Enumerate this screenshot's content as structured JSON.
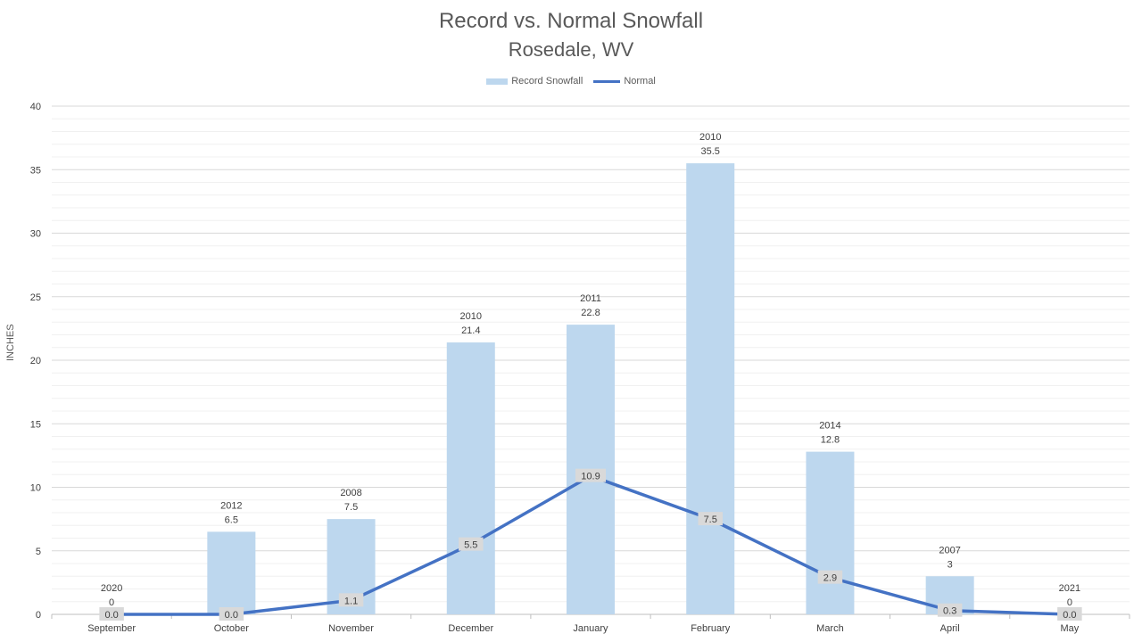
{
  "chart_data": {
    "type": "bar",
    "title": "Record vs. Normal Snowfall",
    "subtitle": "Rosedale, WV",
    "ylabel": "INCHES",
    "xlabel": "",
    "ylim": [
      0,
      40
    ],
    "yticks": [
      0,
      5,
      10,
      15,
      20,
      25,
      30,
      35,
      40
    ],
    "grid": true,
    "legend_position": "top",
    "categories": [
      "September",
      "October",
      "November",
      "December",
      "January",
      "February",
      "March",
      "April",
      "May"
    ],
    "series": [
      {
        "name": "Record Snowfall",
        "type": "bar",
        "color": "#bdd7ee",
        "values": [
          0,
          6.5,
          7.5,
          21.4,
          22.8,
          35.5,
          12.8,
          3,
          0
        ],
        "value_labels": [
          "0",
          "6.5",
          "7.5",
          "21.4",
          "22.8",
          "35.5",
          "12.8",
          "3",
          "0"
        ],
        "years": [
          "2020",
          "2012",
          "2008",
          "2010",
          "2011",
          "2010",
          "2014",
          "2007",
          "2021"
        ]
      },
      {
        "name": "Normal",
        "type": "line",
        "color": "#4472c4",
        "values": [
          0.0,
          0.0,
          1.1,
          5.5,
          10.9,
          7.5,
          2.9,
          0.3,
          0.0
        ],
        "value_labels": [
          "0.0",
          "0.0",
          "1.1",
          "5.5",
          "10.9",
          "7.5",
          "2.9",
          "0.3",
          "0.0"
        ]
      }
    ]
  }
}
